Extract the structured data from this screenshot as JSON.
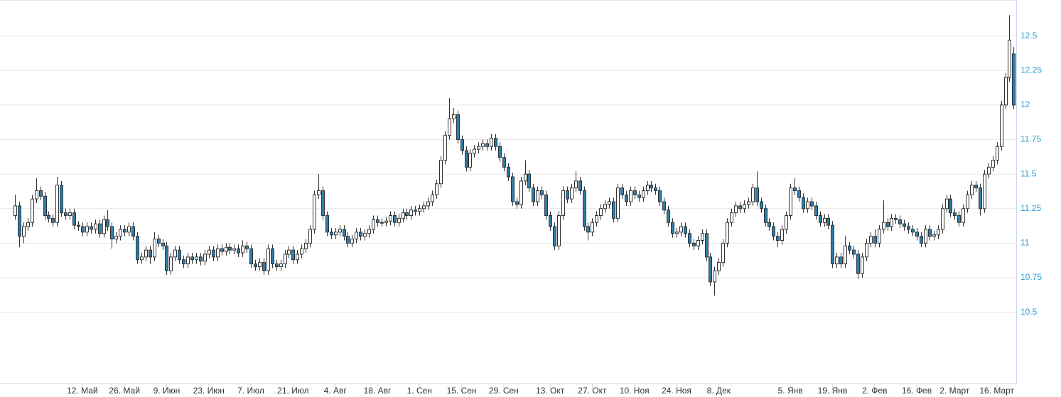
{
  "chart_data": {
    "type": "candlestick",
    "categories": [
      null,
      null,
      null,
      null,
      null,
      null,
      null,
      null,
      null,
      null,
      null,
      null,
      null,
      null,
      null,
      null,
      "12. Май",
      null,
      null,
      null,
      null,
      null,
      null,
      null,
      null,
      null,
      "26. Май",
      null,
      null,
      null,
      null,
      null,
      null,
      null,
      null,
      null,
      "9. Июн",
      null,
      null,
      null,
      null,
      null,
      null,
      null,
      null,
      null,
      "23. Июн",
      null,
      null,
      null,
      null,
      null,
      null,
      null,
      null,
      null,
      "7. Июл",
      null,
      null,
      null,
      null,
      null,
      null,
      null,
      null,
      null,
      "21. Июл",
      null,
      null,
      null,
      null,
      null,
      null,
      null,
      null,
      null,
      "4. Авг",
      null,
      null,
      null,
      null,
      null,
      null,
      null,
      null,
      null,
      "18. Авг",
      null,
      null,
      null,
      null,
      null,
      null,
      null,
      null,
      null,
      "1. Сен",
      null,
      null,
      null,
      null,
      null,
      null,
      null,
      null,
      null,
      "15. Сен",
      null,
      null,
      null,
      null,
      null,
      null,
      null,
      null,
      null,
      "29. Сен",
      null,
      null,
      null,
      null,
      null,
      null,
      null,
      null,
      null,
      null,
      "13. Окт",
      null,
      null,
      null,
      null,
      null,
      null,
      null,
      null,
      null,
      "27. Окт",
      null,
      null,
      null,
      null,
      null,
      null,
      null,
      null,
      null,
      "10. Ноя",
      null,
      null,
      null,
      null,
      null,
      null,
      null,
      null,
      null,
      "24. Ноя",
      null,
      null,
      null,
      null,
      null,
      null,
      null,
      null,
      null,
      "8. Дек",
      null,
      null,
      null,
      null,
      null,
      null,
      null,
      null,
      null,
      null,
      null,
      null,
      null,
      null,
      null,
      null,
      "5. Янв",
      null,
      null,
      null,
      null,
      null,
      null,
      null,
      null,
      null,
      "19. Янв",
      null,
      null,
      null,
      null,
      null,
      null,
      null,
      null,
      null,
      "2. Фев",
      null,
      null,
      null,
      null,
      null,
      null,
      null,
      null,
      null,
      "16. Фев",
      null,
      null,
      null,
      null,
      null,
      null,
      null,
      null,
      "2. Март",
      null,
      null,
      null,
      null,
      null,
      null,
      null,
      null,
      null,
      "16. Март",
      null,
      null,
      null,
      null
    ],
    "open": [
      11.2,
      11.27,
      11.05,
      11.12,
      11.15,
      11.32,
      11.38,
      11.34,
      11.2,
      11.18,
      11.15,
      11.42,
      11.22,
      11.2,
      11.22,
      11.13,
      11.12,
      11.08,
      11.12,
      11.1,
      11.14,
      11.07,
      11.17,
      11.12,
      11.03,
      11.05,
      11.1,
      11.08,
      11.12,
      11.05,
      10.88,
      10.9,
      10.95,
      10.9,
      11.03,
      11.0,
      10.98,
      10.8,
      10.9,
      10.95,
      10.88,
      10.85,
      10.9,
      10.88,
      10.9,
      10.87,
      10.92,
      10.95,
      10.9,
      10.96,
      10.94,
      10.97,
      10.95,
      10.96,
      10.93,
      10.98,
      10.96,
      10.85,
      10.83,
      10.86,
      10.8,
      10.96,
      10.85,
      10.83,
      10.85,
      10.92,
      10.95,
      10.88,
      10.92,
      10.96,
      11.0,
      11.1,
      11.35,
      11.38,
      11.2,
      11.08,
      11.06,
      11.08,
      11.1,
      11.05,
      11.0,
      11.03,
      11.08,
      11.05,
      11.07,
      11.1,
      11.17,
      11.15,
      11.15,
      11.16,
      11.2,
      11.15,
      11.18,
      11.22,
      11.2,
      11.24,
      11.23,
      11.25,
      11.27,
      11.3,
      11.35,
      11.43,
      11.6,
      11.78,
      11.9,
      11.93,
      11.75,
      11.67,
      11.55,
      11.65,
      11.68,
      11.7,
      11.72,
      11.7,
      11.76,
      11.7,
      11.62,
      11.55,
      11.48,
      11.3,
      11.28,
      11.45,
      11.5,
      11.4,
      11.3,
      11.38,
      11.35,
      11.2,
      11.12,
      10.98,
      11.2,
      11.38,
      11.32,
      11.4,
      11.45,
      11.38,
      11.12,
      11.08,
      11.15,
      11.2,
      11.25,
      11.28,
      11.3,
      11.18,
      11.4,
      11.35,
      11.3,
      11.38,
      11.35,
      11.33,
      11.38,
      11.42,
      11.4,
      11.38,
      11.3,
      11.24,
      11.15,
      11.07,
      11.08,
      11.12,
      11.07,
      11.0,
      10.98,
      11.02,
      11.07,
      10.9,
      10.72,
      10.8,
      10.86,
      11.0,
      11.15,
      11.22,
      11.27,
      11.25,
      11.28,
      11.3,
      11.4,
      11.3,
      11.25,
      11.15,
      11.12,
      11.05,
      11.02,
      11.1,
      11.2,
      11.4,
      11.38,
      11.33,
      11.25,
      11.3,
      11.27,
      11.2,
      11.15,
      11.18,
      11.13,
      10.85,
      10.9,
      10.85,
      10.98,
      10.95,
      10.92,
      10.78,
      10.9,
      11.0,
      11.05,
      11.0,
      11.1,
      11.15,
      11.12,
      11.18,
      11.17,
      11.14,
      11.12,
      11.1,
      11.08,
      11.05,
      11.0,
      11.1,
      11.05,
      11.06,
      11.1,
      11.25,
      11.32,
      11.22,
      11.2,
      11.15,
      11.25,
      11.35,
      11.42,
      11.4,
      11.25,
      11.5,
      11.55,
      11.6,
      11.7,
      12.0,
      12.2,
      12.37
    ],
    "high": [
      11.35,
      11.3,
      11.15,
      11.18,
      11.35,
      11.47,
      11.41,
      11.37,
      11.23,
      11.21,
      11.48,
      11.45,
      11.25,
      11.25,
      11.25,
      11.16,
      11.15,
      11.15,
      11.15,
      11.17,
      11.17,
      11.2,
      11.24,
      11.15,
      11.08,
      11.13,
      11.13,
      11.15,
      11.15,
      11.08,
      10.93,
      10.98,
      10.98,
      11.08,
      11.06,
      11.03,
      11.01,
      10.93,
      10.98,
      10.98,
      10.91,
      10.93,
      10.93,
      10.93,
      10.93,
      10.95,
      10.98,
      10.98,
      10.99,
      10.99,
      11.0,
      11.0,
      10.99,
      10.99,
      11.02,
      11.01,
      10.99,
      10.88,
      10.89,
      10.89,
      10.99,
      10.99,
      10.88,
      10.88,
      10.95,
      10.98,
      10.98,
      10.95,
      10.99,
      11.03,
      11.13,
      11.38,
      11.5,
      11.41,
      11.23,
      11.11,
      11.11,
      11.13,
      11.13,
      11.08,
      11.06,
      11.11,
      11.11,
      11.1,
      11.13,
      11.2,
      11.2,
      11.18,
      11.19,
      11.23,
      11.23,
      11.21,
      11.25,
      11.25,
      11.27,
      11.27,
      11.28,
      11.3,
      11.33,
      11.38,
      11.46,
      11.63,
      11.81,
      12.05,
      11.98,
      11.96,
      11.78,
      11.7,
      11.68,
      11.71,
      11.73,
      11.75,
      11.75,
      11.79,
      11.79,
      11.73,
      11.65,
      11.58,
      11.51,
      11.33,
      11.48,
      11.6,
      11.53,
      11.43,
      11.41,
      11.41,
      11.38,
      11.23,
      11.15,
      11.23,
      11.41,
      11.41,
      11.43,
      11.52,
      11.48,
      11.41,
      11.15,
      11.18,
      11.23,
      11.28,
      11.31,
      11.33,
      11.33,
      11.43,
      11.43,
      11.38,
      11.41,
      11.41,
      11.38,
      11.41,
      11.45,
      11.45,
      11.43,
      11.41,
      11.33,
      11.27,
      11.18,
      11.11,
      11.15,
      11.15,
      11.1,
      11.03,
      11.05,
      11.1,
      11.1,
      10.93,
      10.83,
      10.89,
      11.03,
      11.18,
      11.25,
      11.3,
      11.3,
      11.31,
      11.33,
      11.43,
      11.52,
      11.33,
      11.28,
      11.18,
      11.15,
      11.08,
      11.13,
      11.23,
      11.43,
      11.47,
      11.41,
      11.36,
      11.33,
      11.33,
      11.3,
      11.23,
      11.21,
      11.21,
      11.16,
      10.93,
      10.93,
      11.05,
      11.01,
      10.98,
      10.95,
      10.93,
      11.03,
      11.08,
      11.1,
      11.13,
      11.31,
      11.18,
      11.21,
      11.21,
      11.2,
      11.17,
      11.15,
      11.13,
      11.11,
      11.08,
      11.13,
      11.13,
      11.09,
      11.13,
      11.28,
      11.35,
      11.35,
      11.25,
      11.23,
      11.28,
      11.38,
      11.45,
      11.45,
      11.43,
      11.53,
      11.58,
      11.63,
      11.73,
      12.03,
      12.23,
      12.65,
      12.42
    ],
    "low": [
      11.17,
      10.97,
      11.0,
      11.09,
      11.12,
      11.29,
      11.31,
      11.17,
      11.15,
      11.12,
      11.12,
      11.19,
      11.17,
      11.17,
      11.1,
      11.09,
      11.05,
      11.05,
      11.07,
      11.07,
      11.04,
      11.04,
      11.09,
      10.96,
      11.0,
      11.02,
      11.05,
      11.05,
      11.02,
      10.85,
      10.85,
      10.87,
      10.85,
      10.87,
      10.97,
      10.95,
      10.77,
      10.77,
      10.87,
      10.85,
      10.82,
      10.82,
      10.85,
      10.85,
      10.84,
      10.84,
      10.89,
      10.87,
      10.87,
      10.91,
      10.91,
      10.92,
      10.92,
      10.9,
      10.9,
      10.93,
      10.82,
      10.8,
      10.8,
      10.77,
      10.77,
      10.82,
      10.8,
      10.8,
      10.82,
      10.89,
      10.85,
      10.85,
      10.89,
      10.93,
      10.97,
      11.07,
      11.32,
      11.17,
      11.05,
      11.03,
      11.03,
      11.05,
      11.02,
      10.97,
      10.97,
      11.0,
      11.02,
      11.02,
      11.04,
      11.07,
      11.12,
      11.12,
      11.12,
      11.13,
      11.12,
      11.12,
      11.15,
      11.17,
      11.17,
      11.2,
      11.2,
      11.22,
      11.24,
      11.27,
      11.32,
      11.4,
      11.57,
      11.75,
      11.87,
      11.72,
      11.64,
      11.52,
      11.52,
      11.62,
      11.65,
      11.67,
      11.67,
      11.67,
      11.67,
      11.59,
      11.52,
      11.45,
      11.27,
      11.25,
      11.25,
      11.42,
      11.37,
      11.27,
      11.27,
      11.32,
      11.17,
      11.09,
      10.95,
      10.95,
      11.17,
      11.29,
      11.29,
      11.37,
      11.35,
      11.09,
      11.02,
      11.05,
      11.12,
      11.17,
      11.22,
      11.25,
      11.15,
      11.15,
      11.32,
      11.27,
      11.27,
      11.32,
      11.3,
      11.3,
      11.35,
      11.37,
      11.35,
      11.27,
      11.21,
      11.12,
      11.04,
      11.04,
      11.05,
      11.04,
      10.97,
      10.95,
      10.95,
      10.99,
      10.87,
      10.69,
      10.62,
      10.77,
      10.83,
      10.97,
      11.12,
      11.19,
      11.22,
      11.22,
      11.25,
      11.27,
      11.27,
      11.22,
      11.12,
      11.09,
      11.02,
      10.97,
      10.99,
      11.07,
      11.17,
      11.35,
      11.3,
      11.22,
      11.22,
      11.24,
      11.17,
      11.12,
      11.12,
      11.1,
      10.82,
      10.82,
      10.82,
      10.82,
      10.92,
      10.89,
      10.74,
      10.75,
      10.87,
      10.97,
      10.97,
      10.97,
      11.07,
      11.09,
      11.09,
      11.14,
      11.11,
      11.09,
      11.07,
      11.05,
      11.02,
      10.97,
      10.97,
      11.02,
      11.02,
      11.03,
      11.07,
      11.22,
      11.19,
      11.17,
      11.12,
      11.12,
      11.22,
      11.32,
      11.37,
      11.2,
      11.22,
      11.47,
      11.52,
      11.57,
      11.67,
      11.97,
      12.17,
      11.97
    ],
    "close": [
      11.27,
      11.05,
      11.12,
      11.15,
      11.32,
      11.38,
      11.34,
      11.2,
      11.18,
      11.15,
      11.42,
      11.22,
      11.2,
      11.22,
      11.13,
      11.12,
      11.08,
      11.12,
      11.1,
      11.14,
      11.07,
      11.17,
      11.12,
      11.03,
      11.05,
      11.1,
      11.08,
      11.12,
      11.05,
      10.88,
      10.9,
      10.95,
      10.9,
      11.03,
      11.0,
      10.98,
      10.8,
      10.9,
      10.95,
      10.88,
      10.85,
      10.9,
      10.88,
      10.9,
      10.87,
      10.92,
      10.95,
      10.9,
      10.96,
      10.94,
      10.97,
      10.95,
      10.96,
      10.93,
      10.98,
      10.96,
      10.85,
      10.83,
      10.86,
      10.8,
      10.96,
      10.85,
      10.83,
      10.85,
      10.92,
      10.95,
      10.88,
      10.92,
      10.96,
      11.0,
      11.1,
      11.35,
      11.38,
      11.2,
      11.08,
      11.06,
      11.08,
      11.1,
      11.05,
      11.0,
      11.03,
      11.08,
      11.05,
      11.07,
      11.1,
      11.17,
      11.15,
      11.15,
      11.16,
      11.2,
      11.15,
      11.18,
      11.22,
      11.2,
      11.24,
      11.23,
      11.25,
      11.27,
      11.3,
      11.35,
      11.43,
      11.6,
      11.78,
      11.9,
      11.93,
      11.75,
      11.67,
      11.55,
      11.65,
      11.68,
      11.7,
      11.72,
      11.7,
      11.76,
      11.7,
      11.62,
      11.55,
      11.48,
      11.3,
      11.28,
      11.45,
      11.5,
      11.4,
      11.3,
      11.38,
      11.35,
      11.2,
      11.12,
      10.98,
      11.2,
      11.38,
      11.32,
      11.4,
      11.45,
      11.38,
      11.12,
      11.08,
      11.15,
      11.2,
      11.25,
      11.28,
      11.3,
      11.18,
      11.4,
      11.35,
      11.3,
      11.38,
      11.35,
      11.33,
      11.38,
      11.42,
      11.4,
      11.38,
      11.3,
      11.24,
      11.15,
      11.07,
      11.08,
      11.12,
      11.07,
      11.0,
      10.98,
      11.02,
      11.07,
      10.9,
      10.72,
      10.8,
      10.86,
      11.0,
      11.15,
      11.22,
      11.27,
      11.25,
      11.28,
      11.3,
      11.4,
      11.3,
      11.25,
      11.15,
      11.12,
      11.05,
      11.02,
      11.1,
      11.2,
      11.4,
      11.38,
      11.33,
      11.25,
      11.3,
      11.27,
      11.2,
      11.15,
      11.18,
      11.13,
      10.85,
      10.9,
      10.85,
      10.98,
      10.95,
      10.92,
      10.78,
      10.9,
      11.0,
      11.05,
      11.0,
      11.1,
      11.15,
      11.12,
      11.18,
      11.17,
      11.14,
      11.12,
      11.1,
      11.08,
      11.05,
      11.0,
      11.1,
      11.05,
      11.06,
      11.1,
      11.25,
      11.32,
      11.22,
      11.2,
      11.15,
      11.25,
      11.35,
      11.42,
      11.4,
      11.25,
      11.5,
      11.55,
      11.6,
      11.7,
      12.0,
      12.2,
      12.47,
      12.0
    ],
    "up_color": "#ffffff",
    "down_color": "#2a7fad",
    "wick_color": "#333333",
    "ylim": [
      10.01,
      12.76
    ],
    "yticks": [
      10.5,
      10.75,
      11,
      11.25,
      11.5,
      11.75,
      12,
      12.25,
      12.5
    ],
    "grid": true,
    "y_axis_side": "right"
  }
}
